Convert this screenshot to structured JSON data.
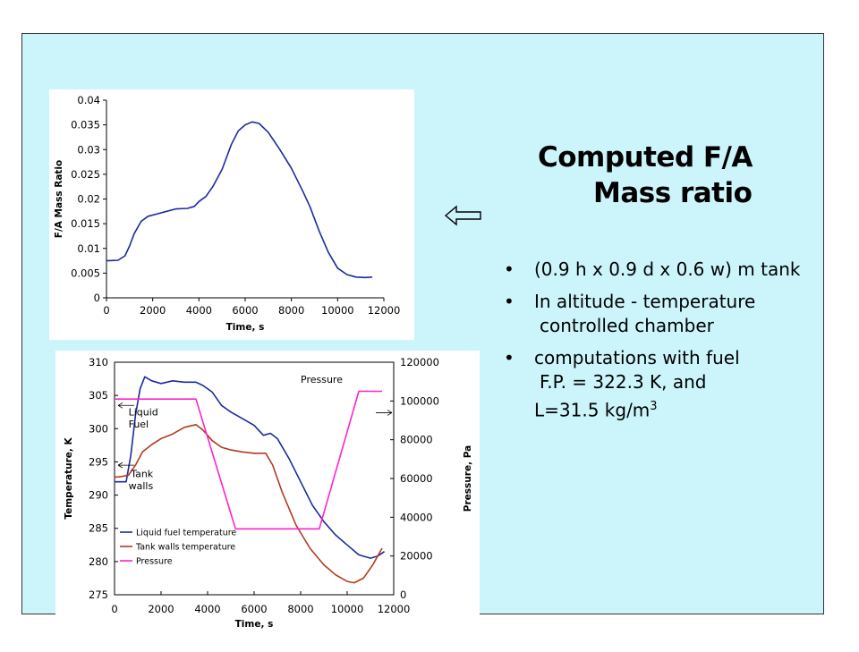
{
  "slide": {
    "title_line1": "Computed F/A",
    "title_line2": "Mass ratio",
    "bullets": [
      {
        "symbol": "•",
        "text": "(0.9 h x 0.9 d x 0.6 w) m tank"
      },
      {
        "symbol": "•",
        "text": "In altitude - temperature",
        "continuation": "controlled chamber"
      },
      {
        "symbol": "•",
        "text": "computations with fuel",
        "continuation1": "F.P. = 322.3 K, and",
        "continuation2_prefix": "L=31.5 kg/m",
        "continuation2_sup": "3"
      }
    ],
    "arrow_icon": "left-arrow-icon",
    "colors": {
      "slide_bg": "#ccf5fb",
      "plot_bg": "#ffffff"
    }
  },
  "chart_data": [
    {
      "type": "line",
      "xlabel": "Time, s",
      "ylabel": "F/A Mass Ratio",
      "xlim": [
        0,
        12000
      ],
      "ylim": [
        0,
        0.04
      ],
      "x_ticks": [
        "0",
        "2000",
        "4000",
        "6000",
        "8000",
        "10000",
        "12000"
      ],
      "y_ticks": [
        "0",
        "0.005",
        "0.01",
        "0.015",
        "0.02",
        "0.025",
        "0.03",
        "0.035",
        "0.04"
      ],
      "grid": false,
      "series": [
        {
          "color": "#1a2a9e",
          "x": [
            0,
            500,
            800,
            1000,
            1200,
            1500,
            1800,
            2200,
            2600,
            3000,
            3500,
            3800,
            4000,
            4300,
            4600,
            5000,
            5400,
            5700,
            6000,
            6300,
            6600,
            7000,
            7500,
            8000,
            8500,
            8800,
            9200,
            9600,
            10000,
            10400,
            10800,
            11200,
            11500
          ],
          "y": [
            0.0075,
            0.0076,
            0.0085,
            0.0105,
            0.013,
            0.0155,
            0.0165,
            0.017,
            0.0175,
            0.018,
            0.0181,
            0.0185,
            0.0195,
            0.0205,
            0.0225,
            0.026,
            0.031,
            0.0338,
            0.035,
            0.0356,
            0.0353,
            0.0335,
            0.03,
            0.0262,
            0.0215,
            0.0185,
            0.0135,
            0.0092,
            0.006,
            0.0047,
            0.0042,
            0.0041,
            0.0042
          ]
        }
      ]
    },
    {
      "type": "line",
      "xlabel": "Time, s",
      "ylabel": "Temperature, K",
      "y2label": "Pressure, Pa",
      "xlim": [
        0,
        12000
      ],
      "ylim": [
        275,
        310
      ],
      "y2lim": [
        0,
        120000
      ],
      "x_ticks": [
        "0",
        "2000",
        "4000",
        "6000",
        "8000",
        "10000",
        "12000"
      ],
      "y_ticks": [
        "275",
        "280",
        "285",
        "290",
        "295",
        "300",
        "305",
        "310"
      ],
      "y2_ticks": [
        "0",
        "20000",
        "40000",
        "60000",
        "80000",
        "100000",
        "120000"
      ],
      "grid": false,
      "annotations": {
        "pressure": "Pressure",
        "liquid_line1": "Liquid",
        "liquid_line2": "Fuel",
        "tank_line1": "Tank",
        "tank_line2": "walls"
      },
      "legend_position": "bottom-left",
      "series": [
        {
          "name": "Liquid fuel temperature",
          "axis": "left",
          "color": "#1a2a9e",
          "x": [
            0,
            300,
            500,
            700,
            900,
            1100,
            1300,
            1600,
            2000,
            2500,
            3000,
            3500,
            3800,
            4200,
            4600,
            5000,
            5500,
            6000,
            6400,
            6700,
            7000,
            7500,
            8000,
            8500,
            9000,
            9500,
            10000,
            10500,
            11000,
            11300,
            11600
          ],
          "y": [
            292,
            292,
            292,
            296,
            302,
            306,
            307.8,
            307.2,
            306.8,
            307.2,
            307,
            307,
            306.5,
            305.5,
            303.5,
            302.5,
            301.5,
            300.5,
            299,
            299.3,
            298.5,
            295.5,
            292,
            288.5,
            286,
            284,
            282.5,
            281,
            280.5,
            280.8,
            281.5
          ]
        },
        {
          "name": "Tank walls temperature",
          "axis": "left",
          "color": "#b33a1e",
          "x": [
            0,
            300,
            600,
            900,
            1200,
            1600,
            2000,
            2500,
            3000,
            3500,
            3800,
            4200,
            4600,
            5000,
            5500,
            6000,
            6500,
            6800,
            7200,
            7800,
            8400,
            9000,
            9500,
            10000,
            10300,
            10700,
            11100,
            11500
          ],
          "y": [
            292.7,
            292.8,
            293,
            294.5,
            296.5,
            297.6,
            298.5,
            299.2,
            300.2,
            300.6,
            299.8,
            298.2,
            297.2,
            296.8,
            296.5,
            296.3,
            296.3,
            294.5,
            290.5,
            285.5,
            282,
            279.5,
            278,
            277,
            276.8,
            277.5,
            279.5,
            282
          ]
        },
        {
          "name": "Pressure",
          "axis": "right",
          "color": "#ff22cc",
          "x": [
            0,
            3500,
            5200,
            8800,
            10500,
            11500
          ],
          "y": [
            101000,
            101000,
            34000,
            34000,
            105000,
            105000
          ]
        }
      ]
    }
  ]
}
